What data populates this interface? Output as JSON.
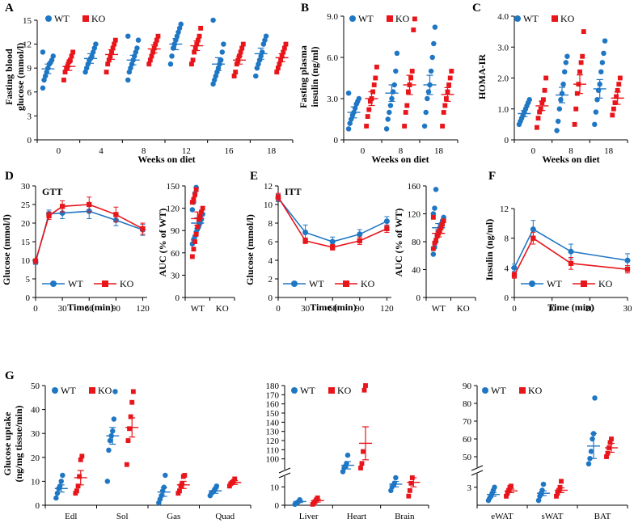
{
  "colors": {
    "wt": "#1f77c4",
    "ko": "#e8151b",
    "axis": "#000000"
  },
  "chart_data": [
    {
      "panel": "A",
      "type": "scatter",
      "ylabel": "Fasting blood glucose (mmol/l)",
      "xlabel": "Weeks on diet",
      "ylim": [
        0,
        15
      ],
      "yticks": [
        0,
        3,
        6,
        9,
        12,
        15
      ],
      "categories": [
        "0",
        "4",
        "8",
        "12",
        "16",
        "18"
      ],
      "legend": [
        "WT",
        "KO"
      ],
      "series": [
        {
          "name": "WT",
          "mean": [
            8.9,
            10.2,
            10.0,
            12.0,
            9.5,
            10.8
          ],
          "sem": [
            0.6,
            0.6,
            0.6,
            0.7,
            0.8,
            0.7
          ],
          "points": [
            [
              6.5,
              7.5,
              8.0,
              8.5,
              9.0,
              9.5,
              9.7,
              10.0,
              10.5,
              11.0
            ],
            [
              8.5,
              9.0,
              9.5,
              10.0,
              10.2,
              10.5,
              11.0,
              11.5,
              12.0
            ],
            [
              7.5,
              8.5,
              9.0,
              9.5,
              10.0,
              10.5,
              11.0,
              11.5,
              12.5,
              13.0
            ],
            [
              9.5,
              10.5,
              11.5,
              12.0,
              12.5,
              13.0,
              13.5,
              14.0,
              14.5
            ],
            [
              7.0,
              7.5,
              8.0,
              8.5,
              9.0,
              9.5,
              10.0,
              11.0,
              12.0,
              15.0
            ],
            [
              8.0,
              9.0,
              9.5,
              10.0,
              10.5,
              11.0,
              12.0,
              12.5,
              13.0
            ]
          ]
        },
        {
          "name": "KO",
          "mean": [
            9.2,
            10.7,
            11.4,
            11.8,
            10.0,
            10.3
          ],
          "sem": [
            0.5,
            0.6,
            0.5,
            0.6,
            0.5,
            0.5
          ],
          "points": [
            [
              7.5,
              8.5,
              9.0,
              9.3,
              9.8,
              10.0,
              10.5,
              11.0
            ],
            [
              8.5,
              9.5,
              10.0,
              10.5,
              11.0,
              11.5,
              12.0,
              12.5
            ],
            [
              9.5,
              10.0,
              10.5,
              11.0,
              11.5,
              12.0,
              12.5,
              13.0
            ],
            [
              9.5,
              10.0,
              11.0,
              11.5,
              12.0,
              12.5,
              13.0,
              14.0
            ],
            [
              8.0,
              8.5,
              9.5,
              10.0,
              10.5,
              11.0,
              11.5,
              12.0
            ],
            [
              8.5,
              9.0,
              9.5,
              10.0,
              10.5,
              11.0,
              11.5,
              12.0
            ]
          ]
        }
      ]
    },
    {
      "panel": "B",
      "type": "scatter",
      "ylabel": "Fasting plasma insulin (ng/ml)",
      "xlabel": "Weeks on diet",
      "ylim": [
        0,
        9
      ],
      "yticks": [
        "0",
        "3.0",
        "6.0",
        "9.0"
      ],
      "categories": [
        "0",
        "8",
        "18"
      ],
      "legend": [
        "WT",
        "KO"
      ],
      "series": [
        {
          "name": "WT",
          "mean": [
            2.0,
            3.4,
            4.0
          ],
          "sem": [
            0.4,
            0.6,
            0.7
          ],
          "points": [
            [
              0.8,
              1.2,
              1.5,
              1.8,
              2.0,
              2.3,
              2.6,
              2.8,
              3.0,
              3.4
            ],
            [
              0.8,
              1.5,
              2.0,
              2.5,
              3.0,
              3.5,
              4.0,
              5.0,
              6.3
            ],
            [
              1.0,
              2.0,
              3.0,
              3.5,
              4.0,
              5.0,
              6.0,
              7.0,
              8.2
            ]
          ]
        },
        {
          "name": "KO",
          "mean": [
            3.0,
            4.0,
            3.3
          ],
          "sem": [
            0.5,
            0.7,
            0.5
          ],
          "points": [
            [
              1.0,
              1.7,
              2.2,
              2.8,
              3.0,
              3.5,
              4.0,
              4.5,
              5.3
            ],
            [
              1.0,
              2.0,
              2.5,
              3.5,
              4.0,
              4.5,
              5.0,
              8.0,
              8.8
            ],
            [
              1.0,
              2.0,
              2.5,
              3.0,
              3.5,
              4.0,
              4.5,
              5.0
            ]
          ]
        }
      ]
    },
    {
      "panel": "C",
      "type": "scatter",
      "ylabel": "HOMA-IR",
      "xlabel": "Weeks on diet",
      "ylim": [
        0,
        4
      ],
      "yticks": [
        "0",
        "1.0",
        "2.0",
        "3.0",
        "4.0"
      ],
      "categories": [
        "0",
        "8",
        "18"
      ],
      "legend": [
        "WT",
        "KO"
      ],
      "series": [
        {
          "name": "WT",
          "mean": [
            0.85,
            1.45,
            1.65
          ],
          "sem": [
            0.1,
            0.25,
            0.3
          ],
          "points": [
            [
              0.5,
              0.6,
              0.7,
              0.8,
              0.9,
              1.0,
              1.1,
              1.2,
              1.3
            ],
            [
              0.3,
              0.6,
              1.0,
              1.3,
              1.5,
              1.8,
              2.2,
              2.5,
              2.7
            ],
            [
              0.5,
              0.9,
              1.3,
              1.6,
              1.8,
              2.2,
              2.5,
              2.8,
              3.2
            ]
          ]
        },
        {
          "name": "KO",
          "mean": [
            1.1,
            1.8,
            1.35
          ],
          "sem": [
            0.15,
            0.3,
            0.2
          ],
          "points": [
            [
              0.4,
              0.7,
              0.9,
              1.0,
              1.2,
              1.3,
              1.6,
              2.0
            ],
            [
              0.5,
              1.0,
              1.5,
              1.8,
              2.2,
              2.5,
              2.7,
              3.5
            ],
            [
              0.8,
              1.0,
              1.2,
              1.4,
              1.6,
              1.8,
              2.0
            ]
          ]
        }
      ]
    },
    {
      "panel": "D",
      "type": "line",
      "title": "GTT",
      "ylabel": "Glucose (mmol/l)",
      "xlabel": "Time (min)",
      "ylim": [
        0,
        30
      ],
      "yticks": [
        0,
        5,
        10,
        15,
        20,
        25,
        30
      ],
      "x": [
        0,
        15,
        30,
        60,
        90,
        120
      ],
      "xticks": [
        0,
        30,
        60,
        90,
        120
      ],
      "series": [
        {
          "name": "WT",
          "values": [
            9.5,
            22.5,
            22.7,
            23.2,
            20.8,
            18.2
          ],
          "err": [
            0.6,
            1.0,
            1.5,
            2.0,
            1.5,
            1.5
          ]
        },
        {
          "name": "KO",
          "values": [
            9.8,
            22.0,
            24.5,
            25.0,
            22.3,
            18.5
          ],
          "err": [
            0.6,
            1.0,
            1.5,
            2.0,
            2.0,
            1.5
          ]
        }
      ]
    },
    {
      "panel": "D2",
      "type": "scatter",
      "ylabel": "AUC (% of WT)",
      "ylim": [
        0,
        150
      ],
      "yticks": [
        0,
        30,
        60,
        90,
        120,
        150
      ],
      "categories": [
        "WT",
        "KO"
      ],
      "series": [
        {
          "name": "WT",
          "mean": 100,
          "sem": 7,
          "points": [
            72,
            78,
            82,
            88,
            92,
            96,
            100,
            105,
            112,
            118,
            128,
            140,
            148
          ]
        },
        {
          "name": "KO",
          "mean": 106,
          "sem": 9,
          "points": [
            55,
            65,
            75,
            85,
            95,
            105,
            110,
            115,
            120,
            128,
            132,
            138,
            145
          ]
        }
      ]
    },
    {
      "panel": "E",
      "type": "line",
      "title": "ITT",
      "ylabel": "Glucose (mmol/l)",
      "xlabel": "Time (min)",
      "ylim": [
        0,
        12
      ],
      "yticks": [
        0,
        2,
        4,
        6,
        8,
        10,
        12
      ],
      "x": [
        0,
        30,
        60,
        90,
        120
      ],
      "xticks": [
        0,
        30,
        60,
        90,
        120
      ],
      "series": [
        {
          "name": "WT",
          "values": [
            10.7,
            7.0,
            6.0,
            6.8,
            8.2
          ],
          "err": [
            0.4,
            0.8,
            0.5,
            0.5,
            0.5
          ]
        },
        {
          "name": "KO",
          "values": [
            10.8,
            6.1,
            5.4,
            6.1,
            7.4
          ],
          "err": [
            0.4,
            0.3,
            0.3,
            0.4,
            0.4
          ]
        }
      ]
    },
    {
      "panel": "E2",
      "type": "scatter",
      "ylabel": "AUC (% of WT)",
      "ylim": [
        0,
        160
      ],
      "yticks": [
        0,
        40,
        80,
        120,
        160
      ],
      "categories": [
        "WT",
        "KO"
      ],
      "series": [
        {
          "name": "WT",
          "mean": 100,
          "sem": 6,
          "points": [
            62,
            72,
            80,
            88,
            95,
            100,
            105,
            110,
            115,
            120,
            128,
            155
          ]
        },
        {
          "name": "KO",
          "mean": 92,
          "sem": 5,
          "points": [
            70,
            78,
            82,
            88,
            92,
            96,
            100,
            105,
            110,
            115
          ]
        }
      ]
    },
    {
      "panel": "F",
      "type": "line",
      "ylabel": "Insulin (ng/ml)",
      "xlabel": "Time (min)",
      "ylim": [
        0,
        12
      ],
      "yticks": [
        0,
        4,
        8,
        12
      ],
      "x": [
        0,
        5,
        15,
        30
      ],
      "xticks": [
        0,
        10,
        20,
        30
      ],
      "series": [
        {
          "name": "WT",
          "values": [
            4.0,
            9.2,
            6.2,
            5.0
          ],
          "err": [
            0.5,
            1.2,
            1.0,
            0.9
          ]
        },
        {
          "name": "KO",
          "values": [
            3.0,
            8.0,
            4.6,
            3.8
          ],
          "err": [
            0.4,
            0.8,
            0.8,
            0.5
          ]
        }
      ]
    },
    {
      "panel": "G",
      "type": "scatter",
      "ylabel": "Glucose uptake (ng/mg tissue/min)",
      "ylim": [
        0,
        50
      ],
      "yticks": [
        0,
        10,
        20,
        30,
        40,
        50
      ],
      "categories": [
        "Edl",
        "Sol",
        "Gas",
        "Quad"
      ],
      "legend": [
        "WT",
        "KO"
      ],
      "series": [
        {
          "name": "WT",
          "mean": [
            7.0,
            29.0,
            5.5,
            6.0
          ],
          "sem": [
            1.5,
            3.5,
            1.8,
            1.0
          ],
          "points": [
            [
              3.0,
              5.0,
              7.0,
              8.0,
              10.0,
              12.5
            ],
            [
              10.0,
              23.0,
              27.0,
              29.0,
              31.0,
              36.0,
              47.5
            ],
            [
              1.0,
              2.5,
              4.0,
              6.0,
              7.5,
              12.5
            ],
            [
              4.0,
              5.0,
              5.5,
              6.0,
              7.0,
              8.0
            ]
          ]
        },
        {
          "name": "KO",
          "mean": [
            11.5,
            32.5,
            8.5,
            9.5
          ],
          "sem": [
            3.0,
            4.0,
            1.5,
            0.8
          ],
          "points": [
            [
              5.0,
              6.0,
              8.0,
              12.0,
              19.0,
              20.5
            ],
            [
              17.0,
              27.0,
              32.0,
              37.0,
              43.0,
              47.5
            ],
            [
              5.0,
              6.0,
              8.0,
              9.0,
              12.0,
              12.5
            ],
            [
              8.0,
              9.0,
              9.5,
              10.0,
              11.0
            ]
          ]
        }
      ]
    },
    {
      "panel": "G2",
      "type": "scatter",
      "broken_axis": true,
      "ylim_low": [
        0,
        15
      ],
      "ylim_high": [
        90,
        180
      ],
      "yticks": [
        0,
        10,
        100,
        110,
        120,
        130,
        140,
        150,
        160,
        170,
        180
      ],
      "categories": [
        "Liver",
        "Heart",
        "Brain"
      ],
      "legend": [
        "WT",
        "KO"
      ],
      "series": [
        {
          "name": "WT",
          "mean": [
            2.0,
            93.0,
            11.5
          ],
          "sem": [
            0.5,
            4.0,
            1.5
          ],
          "points": [
            [
              0.5,
              1.0,
              1.5,
              2.0,
              3.0
            ],
            [
              86.0,
              90.0,
              92.0,
              95.0,
              104.0
            ],
            [
              8.0,
              10.0,
              11.0,
              12.0,
              15.0
            ]
          ]
        },
        {
          "name": "KO",
          "mean": [
            2.5,
            117.0,
            12.5
          ],
          "sem": [
            0.8,
            18.0,
            2.5
          ],
          "points": [
            [
              0.5,
              1.0,
              2.0,
              3.0,
              4.0
            ],
            [
              90.0,
              95.0,
              108.0,
              175.0,
              180.0
            ],
            [
              5.0,
              8.0,
              12.0,
              15.0,
              17.0
            ]
          ]
        }
      ]
    },
    {
      "panel": "G3",
      "type": "scatter",
      "broken_axis": true,
      "ylim_low": [
        0,
        5
      ],
      "ylim_high": [
        45,
        90
      ],
      "yticks": [
        3,
        50,
        60,
        70,
        80,
        90
      ],
      "categories": [
        "eWAT",
        "sWAT",
        "BAT"
      ],
      "legend": [
        "WT",
        "KO"
      ],
      "series": [
        {
          "name": "WT",
          "mean": [
            1.8,
            2.0,
            56.0
          ],
          "sem": [
            0.3,
            0.4,
            7.0
          ],
          "points": [
            [
              0.8,
              1.2,
              1.5,
              2.0,
              2.5,
              3.0
            ],
            [
              0.8,
              1.5,
              2.0,
              2.5,
              3.5
            ],
            [
              46.0,
              49.0,
              53.0,
              60.0,
              63.0,
              83.0
            ]
          ]
        },
        {
          "name": "KO",
          "mean": [
            2.4,
            2.5,
            55.0
          ],
          "sem": [
            0.3,
            0.4,
            2.5
          ],
          "points": [
            [
              1.5,
              2.0,
              2.5,
              3.0,
              3.2
            ],
            [
              1.5,
              2.0,
              2.5,
              3.0,
              4.0
            ],
            [
              50.0,
              52.0,
              55.0,
              58.0,
              60.0
            ]
          ]
        }
      ]
    }
  ]
}
